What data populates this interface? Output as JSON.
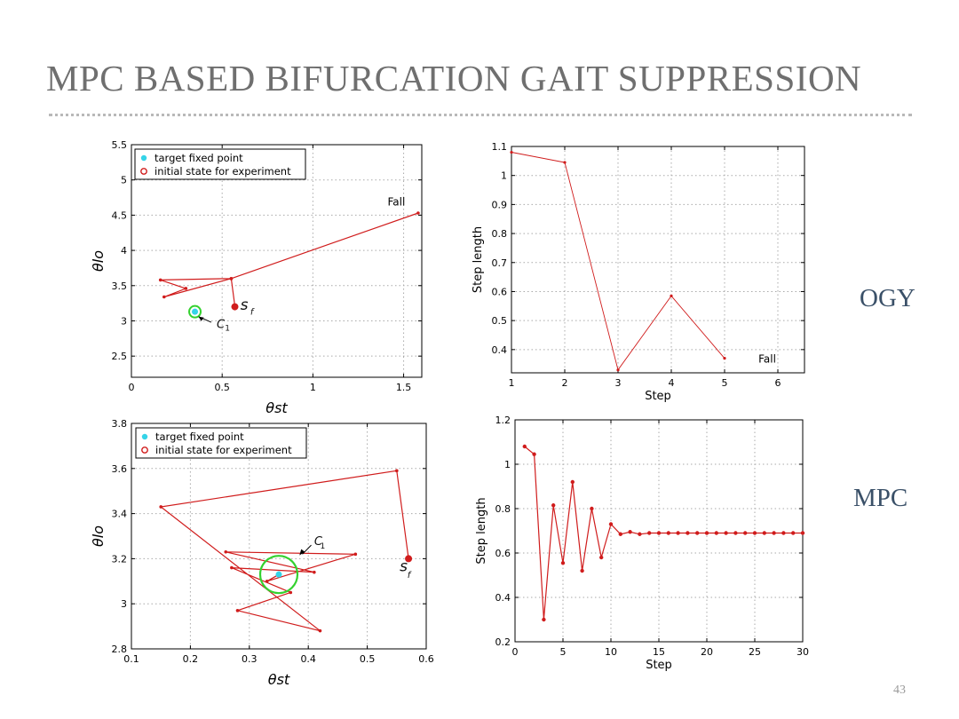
{
  "slide": {
    "title": "MPC BASED BIFURCATION GAIT SUPPRESSION",
    "page_number": "43",
    "row_labels": [
      "OGY",
      "MPC"
    ]
  },
  "colors": {
    "series": "#d01c1c",
    "target": "#35d4e8",
    "circle": "#34d12f",
    "grid": "#a9a9a9",
    "axis": "#000000",
    "title": "#6f6f6f",
    "label": "#3a5068"
  },
  "chart_data": [
    {
      "id": "ogy-state",
      "type": "line",
      "xlabel": "θst",
      "ylabel": "θlo",
      "xlim": [
        0,
        1.6
      ],
      "ylim": [
        2.2,
        5.5
      ],
      "xticks": [
        0,
        0.5,
        1,
        1.5
      ],
      "xtick_labels": [
        "0",
        "0.5",
        "1",
        "1.5"
      ],
      "yticks": [
        2.5,
        3,
        3.5,
        4,
        4.5,
        5,
        5.5
      ],
      "ytick_labels": [
        "2.5",
        "3",
        "3.5",
        "4",
        "4.5",
        "5",
        "5.5"
      ],
      "legend": [
        "target fixed point",
        "initial state for experiment"
      ],
      "series": [
        {
          "name": "trajectory",
          "x": [
            0.57,
            0.55,
            0.16,
            0.3,
            0.18,
            0.55,
            1.58
          ],
          "y": [
            3.21,
            3.6,
            3.58,
            3.46,
            3.34,
            3.6,
            4.53
          ]
        }
      ],
      "target": {
        "x": 0.35,
        "y": 3.13
      },
      "initial": {
        "x": 0.57,
        "y": 3.2
      },
      "circle": {
        "x": 0.35,
        "y": 3.13,
        "r": 0.03
      },
      "annotations": [
        "Fall",
        "s",
        "f",
        "C",
        "1"
      ]
    },
    {
      "id": "ogy-step",
      "type": "line",
      "xlabel": "Step",
      "ylabel": "Step length",
      "xlim": [
        1,
        6.5
      ],
      "ylim": [
        0.32,
        1.1
      ],
      "xticks": [
        1,
        2,
        3,
        4,
        5,
        6
      ],
      "xtick_labels": [
        "1",
        "2",
        "3",
        "4",
        "5",
        "6"
      ],
      "yticks": [
        0.4,
        0.5,
        0.6,
        0.7,
        0.8,
        0.9,
        1,
        1.1
      ],
      "ytick_labels": [
        "0.4",
        "0.5",
        "0.6",
        "0.7",
        "0.8",
        "0.9",
        "1",
        "1.1"
      ],
      "series": [
        {
          "name": "step length",
          "x": [
            1,
            2,
            3,
            4,
            5
          ],
          "y": [
            1.08,
            1.045,
            0.33,
            0.585,
            0.37
          ]
        }
      ],
      "annotations": [
        "Fall"
      ]
    },
    {
      "id": "mpc-state",
      "type": "line",
      "xlabel": "θst",
      "ylabel": "θlo",
      "xlim": [
        0.1,
        0.6
      ],
      "ylim": [
        2.8,
        3.8
      ],
      "xticks": [
        0.1,
        0.2,
        0.3,
        0.4,
        0.5,
        0.6
      ],
      "xtick_labels": [
        "0.1",
        "0.2",
        "0.3",
        "0.4",
        "0.5",
        "0.6"
      ],
      "yticks": [
        2.8,
        3,
        3.2,
        3.4,
        3.6,
        3.8
      ],
      "ytick_labels": [
        "2.8",
        "3",
        "3.2",
        "3.4",
        "3.6",
        "3.8"
      ],
      "legend": [
        "target fixed point",
        "initial state for experiment"
      ],
      "series": [
        {
          "name": "trajectory",
          "x": [
            0.57,
            0.55,
            0.15,
            0.42,
            0.28,
            0.37,
            0.27,
            0.41,
            0.26,
            0.48,
            0.33,
            0.35
          ],
          "y": [
            3.2,
            3.59,
            3.43,
            2.88,
            2.97,
            3.05,
            3.16,
            3.14,
            3.23,
            3.22,
            3.1,
            3.13
          ]
        }
      ],
      "target": {
        "x": 0.35,
        "y": 3.13
      },
      "initial": {
        "x": 0.57,
        "y": 3.2
      },
      "circle": {
        "x": 0.35,
        "y": 3.13,
        "r": 0.03
      },
      "annotations": [
        "C",
        "1",
        "s",
        "f"
      ]
    },
    {
      "id": "mpc-step",
      "type": "line",
      "xlabel": "Step",
      "ylabel": "Step length",
      "xlim": [
        0,
        30
      ],
      "ylim": [
        0.2,
        1.2
      ],
      "xticks": [
        0,
        5,
        10,
        15,
        20,
        25,
        30
      ],
      "xtick_labels": [
        "0",
        "5",
        "10",
        "15",
        "20",
        "25",
        "30"
      ],
      "yticks": [
        0.2,
        0.4,
        0.6,
        0.8,
        1,
        1.2
      ],
      "ytick_labels": [
        "0.2",
        "0.4",
        "0.6",
        "0.8",
        "1",
        "1.2"
      ],
      "series": [
        {
          "name": "step length",
          "x": [
            1,
            2,
            3,
            4,
            5,
            6,
            7,
            8,
            9,
            10,
            11,
            12,
            13,
            14,
            15,
            16,
            17,
            18,
            19,
            20,
            21,
            22,
            23,
            24,
            25,
            26,
            27,
            28,
            29,
            30
          ],
          "y": [
            1.08,
            1.045,
            0.3,
            0.815,
            0.555,
            0.92,
            0.52,
            0.8,
            0.58,
            0.73,
            0.685,
            0.695,
            0.685,
            0.69,
            0.69,
            0.69,
            0.69,
            0.69,
            0.69,
            0.69,
            0.69,
            0.69,
            0.69,
            0.69,
            0.69,
            0.69,
            0.69,
            0.69,
            0.69,
            0.69
          ]
        }
      ]
    }
  ]
}
